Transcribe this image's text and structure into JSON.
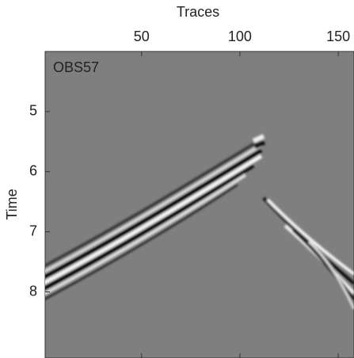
{
  "chart_data": {
    "type": "image",
    "annotation": "OBS57",
    "xlabel": "Traces",
    "ylabel": "Time",
    "xlim": [
      1,
      158
    ],
    "ylim": [
      4,
      9.1
    ],
    "xticks": [
      50,
      100,
      150
    ],
    "yticks": [
      5,
      6,
      7,
      8
    ],
    "y_inverted": true,
    "x_axis_position": "top"
  }
}
